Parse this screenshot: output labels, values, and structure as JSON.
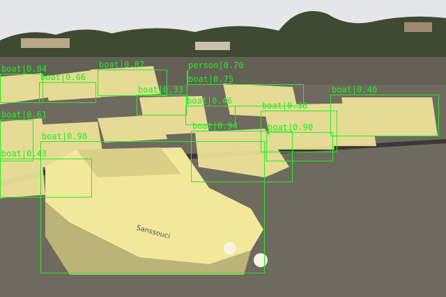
{
  "image": {
    "scene": "Marina on a lake with many moored white motor boats, trees and houses on far shore, overcast sky",
    "annotation_color": "#22ee22",
    "mask_color": "#f2e89a"
  },
  "detections": [
    {
      "label": "boat",
      "score": "0.84"
    },
    {
      "label": "boat",
      "score": "0.87"
    },
    {
      "label": "person",
      "score": "0.70"
    },
    {
      "label": "boat",
      "score": "0.66"
    },
    {
      "label": "boat",
      "score": "0.75"
    },
    {
      "label": "boat",
      "score": "0.33"
    },
    {
      "label": "boat",
      "score": "0.46"
    },
    {
      "label": "boat",
      "score": "0.38"
    },
    {
      "label": "boat",
      "score": "0.40"
    },
    {
      "label": "boat",
      "score": "0.98"
    },
    {
      "label": "boat",
      "score": "0.61"
    },
    {
      "label": "boat",
      "score": "0.90"
    },
    {
      "label": "boat",
      "score": "0.43"
    },
    {
      "label": "boat",
      "score": "0.94"
    }
  ],
  "hull_name": "Sanssouci"
}
